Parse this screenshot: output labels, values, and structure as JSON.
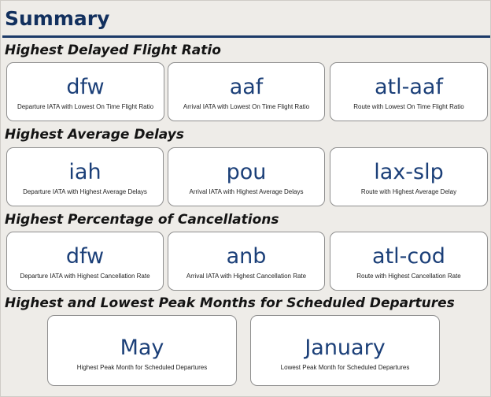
{
  "page": {
    "title": "Summary"
  },
  "sections": [
    {
      "heading": "Highest Delayed Flight Ratio",
      "cards": [
        {
          "value": "dfw",
          "caption": "Departure IATA with Lowest On Time Flight Ratio"
        },
        {
          "value": "aaf",
          "caption": "Arrival IATA with Lowest On Time Flight Ratio"
        },
        {
          "value": "atl-aaf",
          "caption": "Route with Lowest On Time Flight Ratio"
        }
      ]
    },
    {
      "heading": "Highest Average Delays",
      "cards": [
        {
          "value": "iah",
          "caption": "Departure IATA with Highest Average Delays"
        },
        {
          "value": "pou",
          "caption": "Arrival IATA with Highest Average Delays"
        },
        {
          "value": "lax-slp",
          "caption": "Route with Highest Average Delay"
        }
      ]
    },
    {
      "heading": "Highest Percentage of Cancellations",
      "cards": [
        {
          "value": "dfw",
          "caption": "Departure IATA with Highest Cancellation Rate"
        },
        {
          "value": "anb",
          "caption": "Arrival IATA with Highest Cancellation Rate"
        },
        {
          "value": "atl-cod",
          "caption": "Route with Highest Cancellation Rate"
        }
      ]
    },
    {
      "heading": "Highest and Lowest Peak Months for Scheduled Departures",
      "cards": [
        {
          "value": "May",
          "caption": "Highest Peak Month for Scheduled Departures"
        },
        {
          "value": "January",
          "caption": "Lowest Peak Month for Scheduled Departures"
        }
      ]
    }
  ],
  "colors": {
    "title": "#12305e",
    "value_text": "#1b3f78",
    "background": "#eeece8",
    "card_background": "#ffffff"
  }
}
